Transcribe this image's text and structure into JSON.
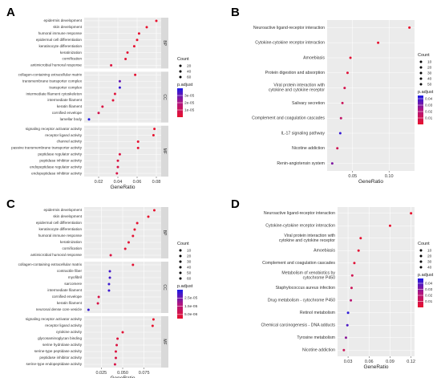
{
  "figure_labels": [
    "A",
    "B",
    "C",
    "D"
  ],
  "colors": {
    "low_p": "#e8112d",
    "high_p": "#1a1ae6",
    "panel_bg": "#ebebeb",
    "strip_bg": "#d9d9d9"
  },
  "chart_data": [
    {
      "id": "A",
      "type": "scatter",
      "xlabel": "GeneRatio",
      "xlim": [
        0.005,
        0.085
      ],
      "xticks": [
        0.02,
        0.04,
        0.06,
        0.08
      ],
      "xtick_labels": [
        "0.02",
        "0.04",
        "0.06",
        "0.08"
      ],
      "legend": {
        "size_title": "Count",
        "sizes": [
          20,
          40,
          60
        ],
        "size_labels": [
          "20",
          "40",
          "60"
        ],
        "color_title": "p.adjust",
        "color_range": [
          0,
          4e-05
        ],
        "color_ticks": [
          1e-05,
          2e-05,
          3e-05
        ],
        "color_tick_labels": [
          "1e-05",
          "2e-05",
          "3e-05"
        ]
      },
      "facets": [
        {
          "name": "BP",
          "terms": [
            [
              "epidermis development",
              0.08,
              65,
              1e-07
            ],
            [
              "skin development",
              0.07,
              58,
              1e-07
            ],
            [
              "humoral immune response",
              0.062,
              50,
              1e-06
            ],
            [
              "epidermal cell differentiation",
              0.06,
              48,
              5e-07
            ],
            [
              "keratinocyte differentiation",
              0.057,
              45,
              5e-07
            ],
            [
              "keratinization",
              0.05,
              40,
              2e-06
            ],
            [
              "cornification",
              0.048,
              38,
              2e-06
            ],
            [
              "antimicrobial humoral response",
              0.033,
              27,
              4e-06
            ]
          ]
        },
        {
          "name": "CC",
          "terms": [
            [
              "collagen-containing extracellular matrix",
              0.058,
              47,
              1e-06
            ],
            [
              "transmembrane transporter complex",
              0.042,
              34,
              3e-05
            ],
            [
              "transporter complex",
              0.042,
              34,
              3.6e-05
            ],
            [
              "intermediate filament cytoskeleton",
              0.037,
              30,
              3e-06
            ],
            [
              "intermediate filament",
              0.035,
              28,
              3e-06
            ],
            [
              "keratin filament",
              0.024,
              19,
              5e-06
            ],
            [
              "cornified envelope",
              0.02,
              16,
              8e-06
            ],
            [
              "lamellar body",
              0.01,
              8,
              3.9e-05
            ]
          ]
        },
        {
          "name": "MF",
          "terms": [
            [
              "signaling receptor activator activity",
              0.078,
              63,
              1e-07
            ],
            [
              "receptor ligand activity",
              0.077,
              62,
              1e-07
            ],
            [
              "channel activity",
              0.061,
              49,
              1e-06
            ],
            [
              "passive transmembrane transporter activity",
              0.061,
              49,
              1e-06
            ],
            [
              "peptidase regulator activity",
              0.042,
              34,
              5e-06
            ],
            [
              "peptidase inhibitor activity",
              0.04,
              32,
              5e-06
            ],
            [
              "endopeptidase regulator activity",
              0.04,
              32,
              6e-06
            ],
            [
              "endopeptidase inhibitor activity",
              0.039,
              31,
              6e-06
            ]
          ]
        }
      ]
    },
    {
      "id": "B",
      "type": "scatter",
      "xlabel": "GeneRatio",
      "xlim": [
        0.015,
        0.135
      ],
      "xticks": [
        0.05,
        0.1
      ],
      "xtick_labels": [
        "0.05",
        "0.10"
      ],
      "legend": {
        "size_title": "Count",
        "sizes": [
          10,
          20,
          30,
          40,
          50
        ],
        "size_labels": [
          "10",
          "20",
          "30",
          "40",
          "50"
        ],
        "color_title": "p.adjust",
        "color_range": [
          0,
          0.045
        ],
        "color_ticks": [
          0.01,
          0.02,
          0.03,
          0.04
        ],
        "color_tick_labels": [
          "0.01",
          "0.02",
          "0.03",
          "0.04"
        ]
      },
      "facets": [
        {
          "name": "",
          "terms": [
            [
              "Neuroactive ligand-receptor interaction",
              0.128,
              57,
              0.0001
            ],
            [
              "Cytokine-cytokine receptor interaction",
              0.085,
              38,
              0.0005
            ],
            [
              "Amoebiasis",
              0.047,
              21,
              0.002
            ],
            [
              "Protein digestion and absorption",
              0.043,
              19,
              0.003
            ],
            [
              "Viral protein interaction with\ncytokine and cytokine receptor",
              0.039,
              17,
              0.008
            ],
            [
              "Salivary secretion",
              0.036,
              16,
              0.012
            ],
            [
              "Complement and coagulation cascades",
              0.034,
              15,
              0.016
            ],
            [
              "IL-17 signaling pathway",
              0.033,
              15,
              0.041
            ],
            [
              "Nicotine addiction",
              0.029,
              13,
              0.01
            ],
            [
              "Renin-angiotensin system",
              0.022,
              10,
              0.03
            ]
          ]
        }
      ]
    },
    {
      "id": "C",
      "type": "scatter",
      "xlabel": "GeneRatio",
      "xlim": [
        0.005,
        0.095
      ],
      "xticks": [
        0.025,
        0.05,
        0.075
      ],
      "xtick_labels": [
        "0.025",
        "0.050",
        "0.075"
      ],
      "legend": {
        "size_title": "Count",
        "sizes": [
          10,
          20,
          30,
          40,
          50,
          60
        ],
        "size_labels": [
          "10",
          "20",
          "30",
          "40",
          "50",
          "60"
        ],
        "color_title": "p.adjust",
        "color_range": [
          0,
          3.5e-05
        ],
        "color_ticks": [
          5e-06,
          1.5e-05,
          2.5e-05
        ],
        "color_tick_labels": [
          "5.0e-06",
          "1.5e-05",
          "2.5e-05"
        ]
      },
      "facets": [
        {
          "name": "BP",
          "terms": [
            [
              "epidermis development",
              0.087,
              65,
              1e-07
            ],
            [
              "skin development",
              0.08,
              60,
              1e-07
            ],
            [
              "epidermal cell differentiation",
              0.067,
              50,
              5e-07
            ],
            [
              "keratinocyte differentiation",
              0.064,
              48,
              5e-07
            ],
            [
              "humoral immune response",
              0.062,
              46,
              1e-06
            ],
            [
              "keratinization",
              0.057,
              43,
              2e-06
            ],
            [
              "cornification",
              0.053,
              40,
              2e-06
            ],
            [
              "antimicrobial humoral response",
              0.036,
              27,
              4e-06
            ]
          ]
        },
        {
          "name": "CC",
          "terms": [
            [
              "collagen-containing extracellular matrix",
              0.062,
              47,
              1e-06
            ],
            [
              "contractile fiber",
              0.035,
              26,
              3e-05
            ],
            [
              "myofibril",
              0.035,
              26,
              3e-05
            ],
            [
              "sarcomere",
              0.034,
              25,
              3.1e-05
            ],
            [
              "intermediate filament",
              0.034,
              25,
              3.1e-05
            ],
            [
              "cornified envelope",
              0.022,
              17,
              5e-06
            ],
            [
              "keratin filament",
              0.021,
              16,
              5e-06
            ],
            [
              "neuronal dense core vesicle",
              0.01,
              8,
              3.2e-05
            ]
          ]
        },
        {
          "name": "MF",
          "terms": [
            [
              "signaling receptor activator activity",
              0.086,
              64,
              1e-07
            ],
            [
              "receptor ligand activity",
              0.085,
              63,
              1e-07
            ],
            [
              "cytokine activity",
              0.05,
              37,
              2e-06
            ],
            [
              "glycosaminoglycan binding",
              0.044,
              33,
              3e-06
            ],
            [
              "serine hydrolase activity",
              0.043,
              32,
              4e-06
            ],
            [
              "serine-type peptidase activity",
              0.042,
              31,
              4e-06
            ],
            [
              "peptidase inhibitor activity",
              0.042,
              31,
              5e-06
            ],
            [
              "serine-type endopeptidase activity",
              0.041,
              30,
              5e-06
            ]
          ]
        }
      ]
    },
    {
      "id": "D",
      "type": "scatter",
      "xlabel": "GeneRatio",
      "xlim": [
        0.015,
        0.125
      ],
      "xticks": [
        0.03,
        0.06,
        0.09,
        0.12
      ],
      "xtick_labels": [
        "0.03",
        "0.06",
        "0.09",
        "0.12"
      ],
      "legend": {
        "size_title": "Count",
        "sizes": [
          10,
          20,
          30,
          40
        ],
        "size_labels": [
          "10",
          "20",
          "30",
          "40"
        ],
        "color_title": "p.adjust",
        "color_range": [
          0,
          0.048
        ],
        "color_ticks": [
          0.01,
          0.02,
          0.03,
          0.04
        ],
        "color_tick_labels": [
          "0.01",
          "0.02",
          "0.03",
          "0.04"
        ]
      },
      "facets": [
        {
          "name": "",
          "terms": [
            [
              "Neuroactive ligand-receptor interaction",
              0.12,
              44,
              0.0001
            ],
            [
              "Cytokine-cytokine receptor interaction",
              0.09,
              33,
              0.0003
            ],
            [
              "Viral protein interaction with\ncytokine and cytokine receptor",
              0.048,
              18,
              0.001
            ],
            [
              "Amoebiasis",
              0.045,
              17,
              0.002
            ],
            [
              "Complement and coagulation cascades",
              0.039,
              14,
              0.003
            ],
            [
              "Metabolism of xenobiotics by\ncytochrome P450",
              0.036,
              13,
              0.01
            ],
            [
              "Staphylococcus aureus infection",
              0.035,
              13,
              0.012
            ],
            [
              "Drug metabolism - cytochrome P450",
              0.034,
              12,
              0.02
            ],
            [
              "Retinol metabolism",
              0.03,
              11,
              0.045
            ],
            [
              "Chemical carcinogenesis - DNA adducts",
              0.029,
              11,
              0.04
            ],
            [
              "Tyrosine metabolism",
              0.027,
              10,
              0.03
            ],
            [
              "Nicotine addiction",
              0.024,
              9,
              0.012
            ]
          ]
        }
      ]
    }
  ]
}
